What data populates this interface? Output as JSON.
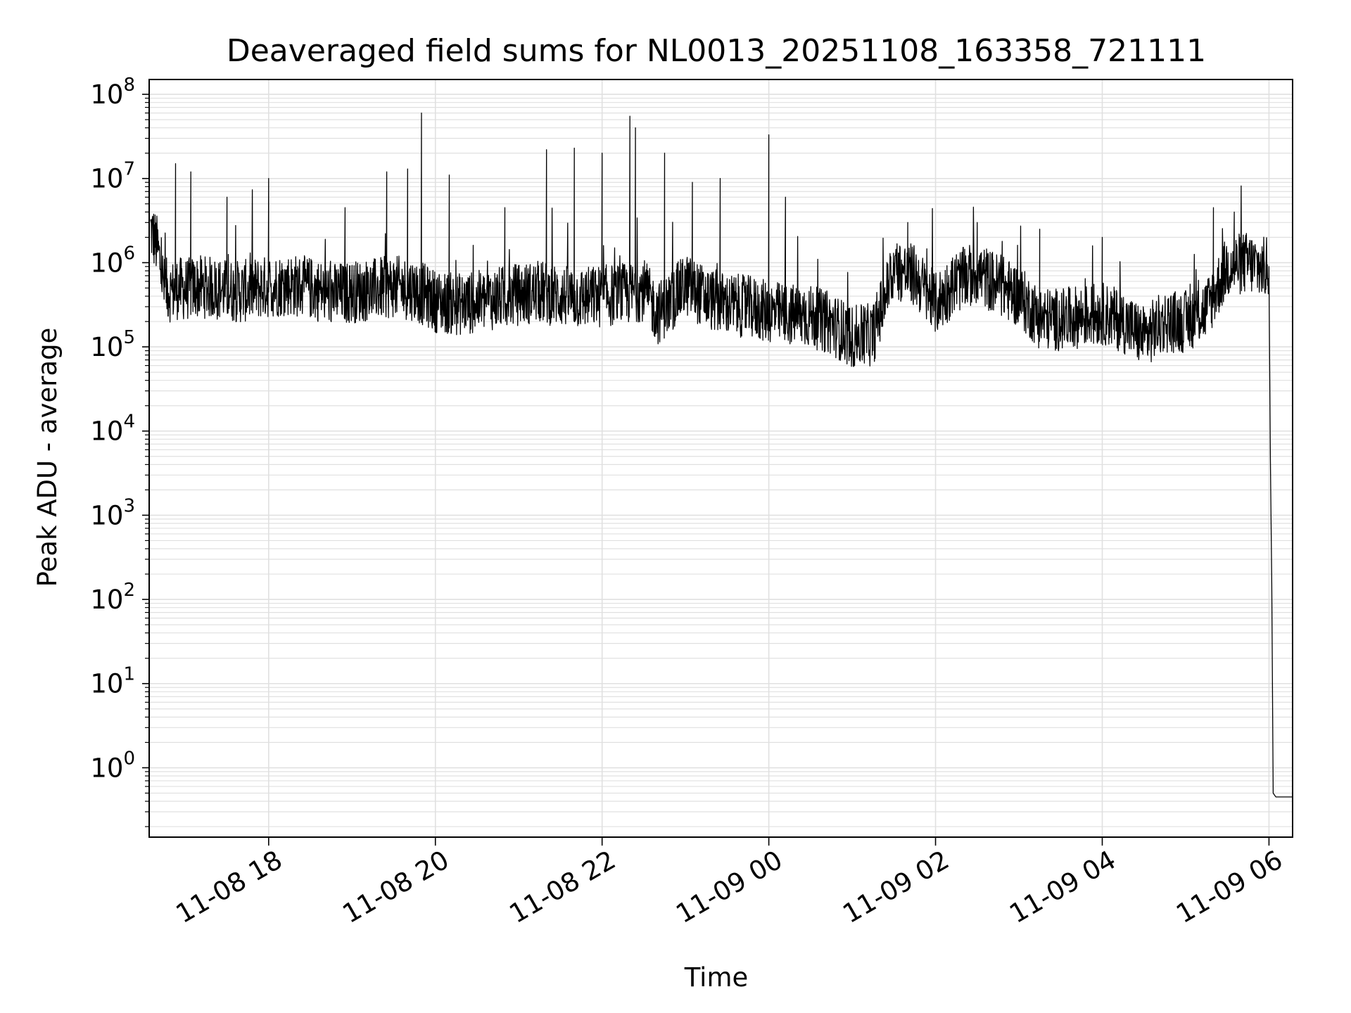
{
  "chart_data": {
    "type": "line",
    "title": "Deaveraged field sums for NL0013_20251108_163358_721111",
    "xlabel": "Time",
    "ylabel": "Peak ADU - average",
    "yscale": "log",
    "ylim": [
      0.15,
      150000000
    ],
    "xlim": [
      "2025-11-08 16:34",
      "2025-11-09 06:17"
    ],
    "grid": true,
    "line_color": "#000000",
    "grid_color": "#e0e0e0",
    "x_tick_labels": [
      "11-08 18",
      "11-08 20",
      "11-08 22",
      "11-09 00",
      "11-09 02",
      "11-09 04",
      "11-09 06"
    ],
    "x_ticks": [
      "2025-11-08 18:00",
      "2025-11-08 20:00",
      "2025-11-08 22:00",
      "2025-11-09 00:00",
      "2025-11-09 02:00",
      "2025-11-09 04:00",
      "2025-11-09 06:00"
    ],
    "y_ticks": [
      {
        "value": 1,
        "base": "10",
        "exp": "0"
      },
      {
        "value": 10,
        "base": "10",
        "exp": "1"
      },
      {
        "value": 100,
        "base": "10",
        "exp": "2"
      },
      {
        "value": 1000,
        "base": "10",
        "exp": "3"
      },
      {
        "value": 10000,
        "base": "10",
        "exp": "4"
      },
      {
        "value": 100000,
        "base": "10",
        "exp": "5"
      },
      {
        "value": 1000000,
        "base": "10",
        "exp": "6"
      },
      {
        "value": 10000000,
        "base": "10",
        "exp": "7"
      },
      {
        "value": 100000000,
        "base": "10",
        "exp": "8"
      }
    ],
    "series": [
      {
        "x": [
          "2025-11-08 16:35",
          "2025-11-08 16:40",
          "2025-11-08 16:45",
          "2025-11-08 16:50",
          "2025-11-08 16:55",
          "2025-11-08 17:00",
          "2025-11-08 17:10",
          "2025-11-08 17:20",
          "2025-11-08 17:30",
          "2025-11-08 17:40",
          "2025-11-08 17:50",
          "2025-11-08 18:00",
          "2025-11-08 18:15",
          "2025-11-08 18:30",
          "2025-11-08 18:45",
          "2025-11-08 19:00",
          "2025-11-08 19:15",
          "2025-11-08 19:30",
          "2025-11-08 19:45",
          "2025-11-08 20:00",
          "2025-11-08 20:15",
          "2025-11-08 20:30",
          "2025-11-08 20:45",
          "2025-11-08 21:00",
          "2025-11-08 21:15",
          "2025-11-08 21:30",
          "2025-11-08 21:45",
          "2025-11-08 22:00",
          "2025-11-08 22:15",
          "2025-11-08 22:30",
          "2025-11-08 22:40",
          "2025-11-08 22:50",
          "2025-11-08 23:00",
          "2025-11-08 23:15",
          "2025-11-08 23:30",
          "2025-11-08 23:45",
          "2025-11-09 00:00",
          "2025-11-09 00:15",
          "2025-11-09 00:30",
          "2025-11-09 00:45",
          "2025-11-09 01:00",
          "2025-11-09 01:15",
          "2025-11-09 01:30",
          "2025-11-09 01:45",
          "2025-11-09 02:00",
          "2025-11-09 02:15",
          "2025-11-09 02:30",
          "2025-11-09 02:45",
          "2025-11-09 03:00",
          "2025-11-09 03:15",
          "2025-11-09 03:30",
          "2025-11-09 03:45",
          "2025-11-09 04:00",
          "2025-11-09 04:15",
          "2025-11-09 04:30",
          "2025-11-09 04:45",
          "2025-11-09 05:00",
          "2025-11-09 05:15",
          "2025-11-09 05:30",
          "2025-11-09 05:45",
          "2025-11-09 05:55",
          "2025-11-09 06:00",
          "2025-11-09 06:01",
          "2025-11-09 06:02",
          "2025-11-09 06:03",
          "2025-11-09 06:05",
          "2025-11-09 06:10",
          "2025-11-09 06:17"
        ],
        "values": [
          2500000,
          1500000,
          500000,
          450000,
          500000,
          480000,
          520000,
          500000,
          470000,
          450000,
          490000,
          520000,
          550000,
          500000,
          420000,
          450000,
          480000,
          520000,
          480000,
          350000,
          320000,
          340000,
          380000,
          420000,
          450000,
          400000,
          380000,
          400000,
          420000,
          480000,
          250000,
          350000,
          550000,
          380000,
          320000,
          300000,
          260000,
          240000,
          230000,
          190000,
          130000,
          140000,
          850000,
          700000,
          320000,
          600000,
          750000,
          550000,
          400000,
          220000,
          210000,
          230000,
          250000,
          200000,
          130000,
          200000,
          200000,
          280000,
          900000,
          1000000,
          850000,
          900000,
          5000,
          150,
          0.5,
          0.45,
          0.45,
          0.45
        ]
      }
    ],
    "spikes": [
      {
        "x": "2025-11-08 16:53",
        "value": 15000000
      },
      {
        "x": "2025-11-08 17:04",
        "value": 12000000
      },
      {
        "x": "2025-11-08 17:30",
        "value": 6000000
      },
      {
        "x": "2025-11-08 18:00",
        "value": 10000000
      },
      {
        "x": "2025-11-08 18:55",
        "value": 4500000
      },
      {
        "x": "2025-11-08 19:25",
        "value": 12000000
      },
      {
        "x": "2025-11-08 19:40",
        "value": 13000000
      },
      {
        "x": "2025-11-08 19:50",
        "value": 60000000
      },
      {
        "x": "2025-11-08 20:10",
        "value": 11000000
      },
      {
        "x": "2025-11-08 20:50",
        "value": 4500000
      },
      {
        "x": "2025-11-08 21:20",
        "value": 22000000
      },
      {
        "x": "2025-11-08 21:40",
        "value": 23000000
      },
      {
        "x": "2025-11-08 22:00",
        "value": 20000000
      },
      {
        "x": "2025-11-08 22:20",
        "value": 55000000
      },
      {
        "x": "2025-11-08 22:24",
        "value": 40000000
      },
      {
        "x": "2025-11-08 22:45",
        "value": 20000000
      },
      {
        "x": "2025-11-08 23:05",
        "value": 9000000
      },
      {
        "x": "2025-11-08 23:25",
        "value": 10000000
      },
      {
        "x": "2025-11-09 00:00",
        "value": 33000000
      },
      {
        "x": "2025-11-09 00:12",
        "value": 6000000
      },
      {
        "x": "2025-11-09 01:40",
        "value": 3000000
      },
      {
        "x": "2025-11-09 02:30",
        "value": 3000000
      },
      {
        "x": "2025-11-09 03:15",
        "value": 2500000
      },
      {
        "x": "2025-11-09 04:00",
        "value": 2000000
      },
      {
        "x": "2025-11-09 05:20",
        "value": 4500000
      },
      {
        "x": "2025-11-09 05:35",
        "value": 4000000
      }
    ]
  }
}
